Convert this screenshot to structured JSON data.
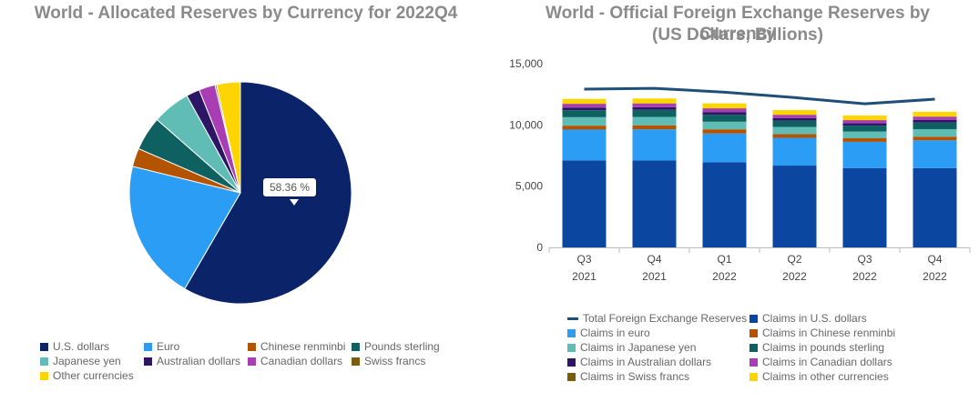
{
  "chart_data": [
    {
      "type": "pie",
      "title": "World - Allocated Reserves by Currency for 2022Q4",
      "tooltip": "58.36 %",
      "slices": [
        {
          "name": "U.S. dollars",
          "value": 58.36,
          "color": "#0b2369"
        },
        {
          "name": "Euro",
          "value": 20.47,
          "color": "#2b9df4"
        },
        {
          "name": "Chinese renminbi",
          "value": 2.69,
          "color": "#b55400"
        },
        {
          "name": "Pounds sterling",
          "value": 4.95,
          "color": "#0f6161"
        },
        {
          "name": "Japanese yen",
          "value": 5.51,
          "color": "#5fbdb6"
        },
        {
          "name": "Australian dollars",
          "value": 1.96,
          "color": "#2d1566"
        },
        {
          "name": "Canadian dollars",
          "value": 2.38,
          "color": "#a93db3"
        },
        {
          "name": "Swiss francs",
          "value": 0.23,
          "color": "#7a5d0c"
        },
        {
          "name": "Other currencies",
          "value": 3.45,
          "color": "#ffd500"
        }
      ],
      "legend_position": "bottom"
    },
    {
      "type": "bar",
      "stacked": true,
      "title_line1": "World - Official Foreign Exchange Reserves by Currency",
      "title_line2": "(US Dollars, Billions)",
      "categories": [
        [
          "Q3",
          "2021"
        ],
        [
          "Q4",
          "2021"
        ],
        [
          "Q1",
          "2022"
        ],
        [
          "Q2",
          "2022"
        ],
        [
          "Q3",
          "2022"
        ],
        [
          "Q4",
          "2022"
        ]
      ],
      "ylim": [
        0,
        15000
      ],
      "yticks": [
        "0",
        "5,000",
        "10,000",
        "15,000"
      ],
      "ytick_values": [
        0,
        5000,
        10000,
        15000
      ],
      "line_series": {
        "name": "Total Foreign Exchange Reserves",
        "color": "#1f4e79",
        "values": [
          12920,
          12990,
          12670,
          12230,
          11720,
          12100
        ]
      },
      "series": [
        {
          "name": "Claims in U.S. dollars",
          "color": "#0b47a1",
          "values": [
            7100,
            7090,
            6960,
            6680,
            6480,
            6470
          ]
        },
        {
          "name": "Claims in euro",
          "color": "#2b9df4",
          "values": [
            2520,
            2550,
            2340,
            2270,
            2140,
            2270
          ]
        },
        {
          "name": "Claims in Chinese renminbi",
          "color": "#b55400",
          "values": [
            320,
            330,
            340,
            300,
            290,
            300
          ]
        },
        {
          "name": "Claims in Japanese yen",
          "color": "#5fbdb6",
          "values": [
            690,
            680,
            620,
            580,
            550,
            610
          ]
        },
        {
          "name": "Claims in pounds sterling",
          "color": "#0f6161",
          "values": [
            570,
            580,
            570,
            520,
            480,
            540
          ]
        },
        {
          "name": "Claims in Australian dollars",
          "color": "#2d1566",
          "values": [
            220,
            220,
            220,
            200,
            190,
            210
          ]
        },
        {
          "name": "Claims in Canadian dollars",
          "color": "#a93db3",
          "values": [
            290,
            290,
            290,
            260,
            250,
            260
          ]
        },
        {
          "name": "Claims in Swiss francs",
          "color": "#7a5d0c",
          "values": [
            20,
            20,
            20,
            20,
            20,
            20
          ]
        },
        {
          "name": "Claims in other currencies",
          "color": "#ffd500",
          "values": [
            390,
            400,
            400,
            380,
            370,
            390
          ]
        }
      ],
      "legend_position": "bottom"
    }
  ]
}
